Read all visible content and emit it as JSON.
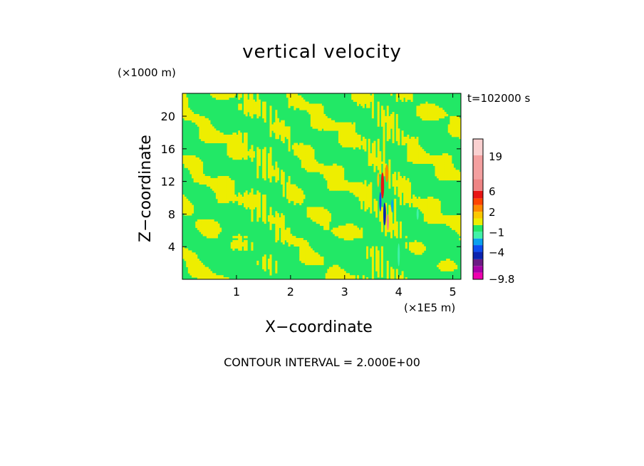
{
  "chart_data": {
    "type": "heatmap",
    "title": "vertical velocity",
    "time_label": "t=102000 s",
    "x_axis": {
      "label": "X−coordinate",
      "units": "(×1E5 m)",
      "range": [
        0,
        5.15
      ],
      "ticks": [
        1,
        2,
        3,
        4,
        5
      ],
      "tick_labels": [
        "1",
        "2",
        "3",
        "4",
        "5"
      ]
    },
    "y_axis": {
      "label": "Z−coordinate",
      "units": "(×1000 m)",
      "range": [
        0,
        22.8
      ],
      "ticks": [
        4,
        8,
        12,
        16,
        20
      ],
      "tick_labels": [
        "4",
        "8",
        "12",
        "16",
        "20"
      ]
    },
    "colorbar": {
      "levels": [
        -9.8,
        -8,
        -6,
        -4,
        -3,
        -2,
        -1,
        0,
        1,
        2,
        3,
        4,
        6,
        8,
        12,
        16,
        20
      ],
      "colors": [
        "#ee00ae",
        "#a800a8",
        "#6c1a84",
        "#0c24b0",
        "#0c4cf0",
        "#0aa0ee",
        "#40f2a8",
        "#22e866",
        "#eeee00",
        "#fbc800",
        "#ff8800",
        "#ff4400",
        "#e81414",
        "#ee8484",
        "#f4a0a0",
        "#fad0d0"
      ],
      "labels": [
        "19",
        "6",
        "2",
        "−1",
        "−4",
        "−9.8"
      ]
    },
    "contour_interval": "CONTOUR INTERVAL = 2.000E+00",
    "field_summary": "Predominantly weak vertical velocity (green 0..1, yellow 1..2) in alternating slanted bands, with strong up/down-drafts concentrated near X = 3.7–3.9 and Z = 6–14.",
    "colors": {
      "green": "#22e866",
      "yellow": "#eeee00",
      "cyan": "#40f2a8",
      "plot_bg": "#22e866"
    }
  }
}
